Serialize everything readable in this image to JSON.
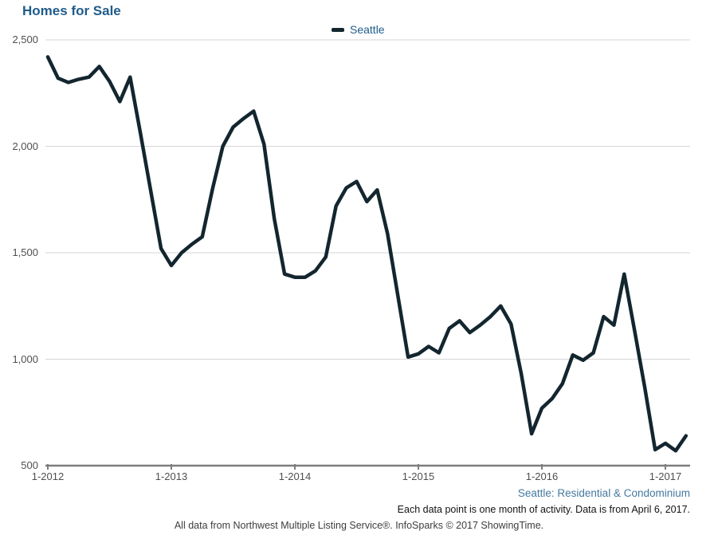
{
  "title": "Homes for Sale",
  "legend": {
    "label": "Seattle"
  },
  "colors": {
    "title": "#1f5c8b",
    "line": "#13262f",
    "grid": "#d6d6d6",
    "axis": "#7d7d7d",
    "tick_text": "#4f4f4f",
    "footer_blue": "#44799f"
  },
  "footer": {
    "scope_line": "Seattle: Residential & Condominium",
    "note_line": "Each data point is one month of activity. Data is from April 6, 2017.",
    "credit_line": "All data from Northwest Multiple Listing Service®. InfoSparks © 2017 ShowingTime."
  },
  "chart_data": {
    "type": "line",
    "title": "Homes for Sale",
    "x_start": "1-2012",
    "x_interval": "month",
    "x_tick_labels": [
      "1-2012",
      "1-2013",
      "1-2014",
      "1-2015",
      "1-2016",
      "1-2017"
    ],
    "x_tick_month_index": [
      0,
      12,
      24,
      36,
      48,
      60
    ],
    "y_ticks": [
      500,
      1000,
      1500,
      2000,
      2500
    ],
    "y_tick_labels": [
      "500",
      "1,000",
      "1,500",
      "2,000",
      "2,500"
    ],
    "ylim": [
      500,
      2500
    ],
    "grid": "horizontal",
    "legend_position": "top-center",
    "series": [
      {
        "name": "Seattle",
        "color": "#13262f",
        "values": [
          2420,
          2320,
          2300,
          2315,
          2325,
          2375,
          2305,
          2210,
          2325,
          2060,
          1790,
          1520,
          1440,
          1500,
          1540,
          1575,
          1800,
          2000,
          2090,
          2130,
          2165,
          2010,
          1660,
          1400,
          1385,
          1385,
          1415,
          1480,
          1720,
          1805,
          1835,
          1740,
          1795,
          1590,
          1300,
          1010,
          1025,
          1060,
          1030,
          1145,
          1180,
          1125,
          1160,
          1200,
          1250,
          1165,
          930,
          650,
          770,
          815,
          885,
          1020,
          995,
          1030,
          1200,
          1160,
          1400,
          1135,
          865,
          575,
          605,
          570,
          640
        ]
      }
    ]
  }
}
